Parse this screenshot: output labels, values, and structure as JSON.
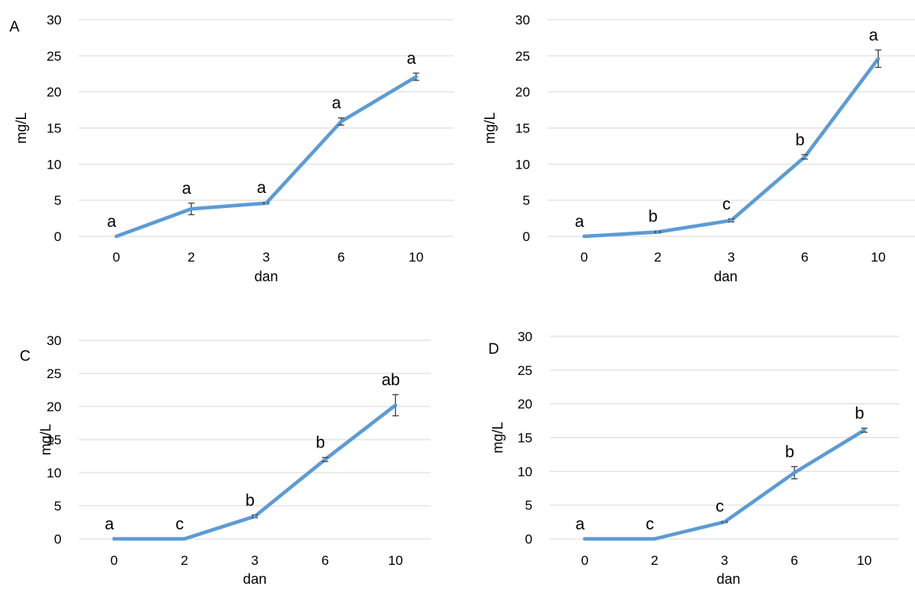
{
  "chart_data": [
    {
      "type": "line",
      "panel_label": "A",
      "xlabel": "dan",
      "ylabel": "mg/L",
      "categories": [
        "0",
        "2",
        "3",
        "6",
        "10"
      ],
      "ylim": [
        0,
        30
      ],
      "yticks": [
        0,
        5,
        10,
        15,
        20,
        25,
        30
      ],
      "grid": true,
      "series": [
        {
          "values": [
            0,
            3.8,
            4.6,
            15.9,
            22.1
          ],
          "errors": [
            0,
            0.8,
            0.1,
            0.5,
            0.5
          ],
          "color": "#5b9bd5"
        }
      ],
      "annotations": [
        "a",
        "a",
        "a",
        "a",
        "a"
      ]
    },
    {
      "type": "line",
      "panel_label": "",
      "xlabel": "dan",
      "ylabel": "mg/L",
      "categories": [
        "0",
        "2",
        "3",
        "6",
        "10"
      ],
      "ylim": [
        0,
        30
      ],
      "yticks": [
        0,
        5,
        10,
        15,
        20,
        25,
        30
      ],
      "grid": true,
      "series": [
        {
          "values": [
            0,
            0.6,
            2.2,
            11.0,
            24.6
          ],
          "errors": [
            0,
            0.1,
            0.2,
            0.3,
            1.2
          ],
          "color": "#5b9bd5"
        }
      ],
      "annotations": [
        "a",
        "b",
        "c",
        "b",
        "a"
      ]
    },
    {
      "type": "line",
      "panel_label": "C",
      "xlabel": "dan",
      "ylabel": "mg/L",
      "categories": [
        "0",
        "2",
        "3",
        "6",
        "10"
      ],
      "ylim": [
        0,
        30
      ],
      "yticks": [
        0,
        5,
        10,
        15,
        20,
        25,
        30
      ],
      "grid": true,
      "series": [
        {
          "values": [
            0,
            0,
            3.4,
            12.0,
            20.2
          ],
          "errors": [
            0,
            0,
            0.2,
            0.3,
            1.6
          ],
          "color": "#5b9bd5"
        }
      ],
      "annotations": [
        "a",
        "c",
        "b",
        "b",
        "ab"
      ]
    },
    {
      "type": "line",
      "panel_label": "D",
      "xlabel": "dan",
      "ylabel": "mg/L",
      "categories": [
        "0",
        "2",
        "3",
        "6",
        "10"
      ],
      "ylim": [
        0,
        30
      ],
      "yticks": [
        0,
        5,
        10,
        15,
        20,
        25,
        30
      ],
      "grid": true,
      "series": [
        {
          "values": [
            0,
            0,
            2.5,
            9.8,
            16.1
          ],
          "errors": [
            0,
            0,
            0.1,
            0.9,
            0.3
          ],
          "color": "#5b9bd5"
        }
      ],
      "annotations": [
        "a",
        "c",
        "c",
        "b",
        "b"
      ]
    }
  ]
}
